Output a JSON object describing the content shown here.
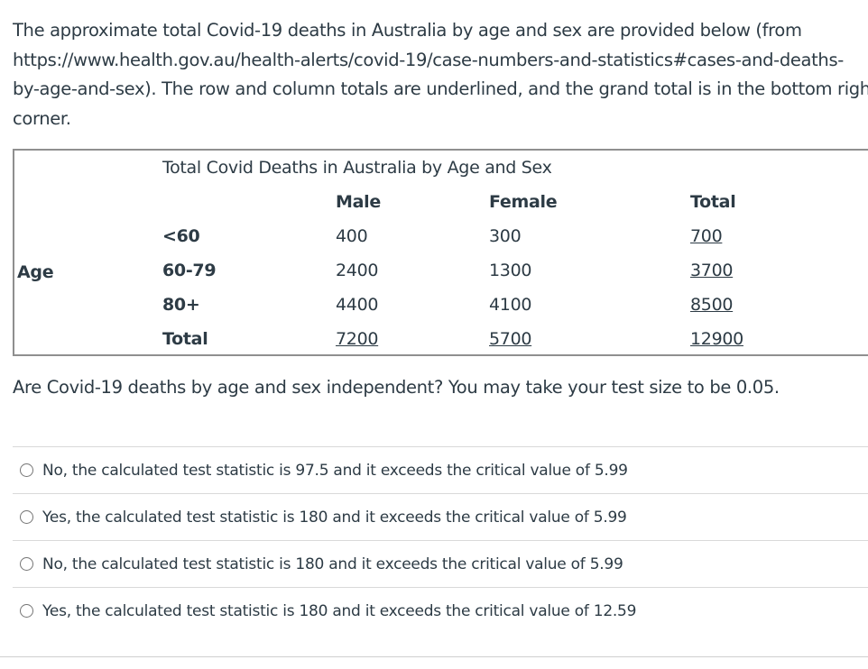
{
  "question": {
    "lines": [
      "The approximate total Covid-19 deaths in Australia by age and sex are provided below (from",
      "https://www.health.gov.au/health-alerts/covid-19/case-numbers-and-statistics#cases-and-deaths-",
      "by-age-and-sex). The row and column totals are underlined, and the grand total is in the bottom righ",
      "corner."
    ]
  },
  "table": {
    "caption": "Total Covid Deaths in Australia by Age and Sex",
    "side_label": "Age",
    "headers": [
      "Male",
      "Female",
      "Total"
    ],
    "rows": [
      {
        "label": "<60",
        "values": [
          "400",
          "300",
          "700"
        ]
      },
      {
        "label": "60-79",
        "values": [
          "2400",
          "1300",
          "3700"
        ]
      },
      {
        "label": "80+",
        "values": [
          "4400",
          "4100",
          "8500"
        ]
      },
      {
        "label": "Total",
        "values": [
          "7200",
          "5700",
          "12900"
        ]
      }
    ]
  },
  "prompt": "Are Covid-19 deaths by age and sex independent? You may take your test size to be 0.05.",
  "answers": [
    "No, the calculated test statistic is 97.5 and it exceeds the critical value of 5.99",
    "Yes, the calculated test statistic is 180 and it exceeds the critical value of 5.99",
    "No, the calculated test statistic is 180 and it exceeds the critical value of 5.99",
    "Yes, the calculated test statistic is 180 and it exceeds the critical value of 12.59"
  ]
}
